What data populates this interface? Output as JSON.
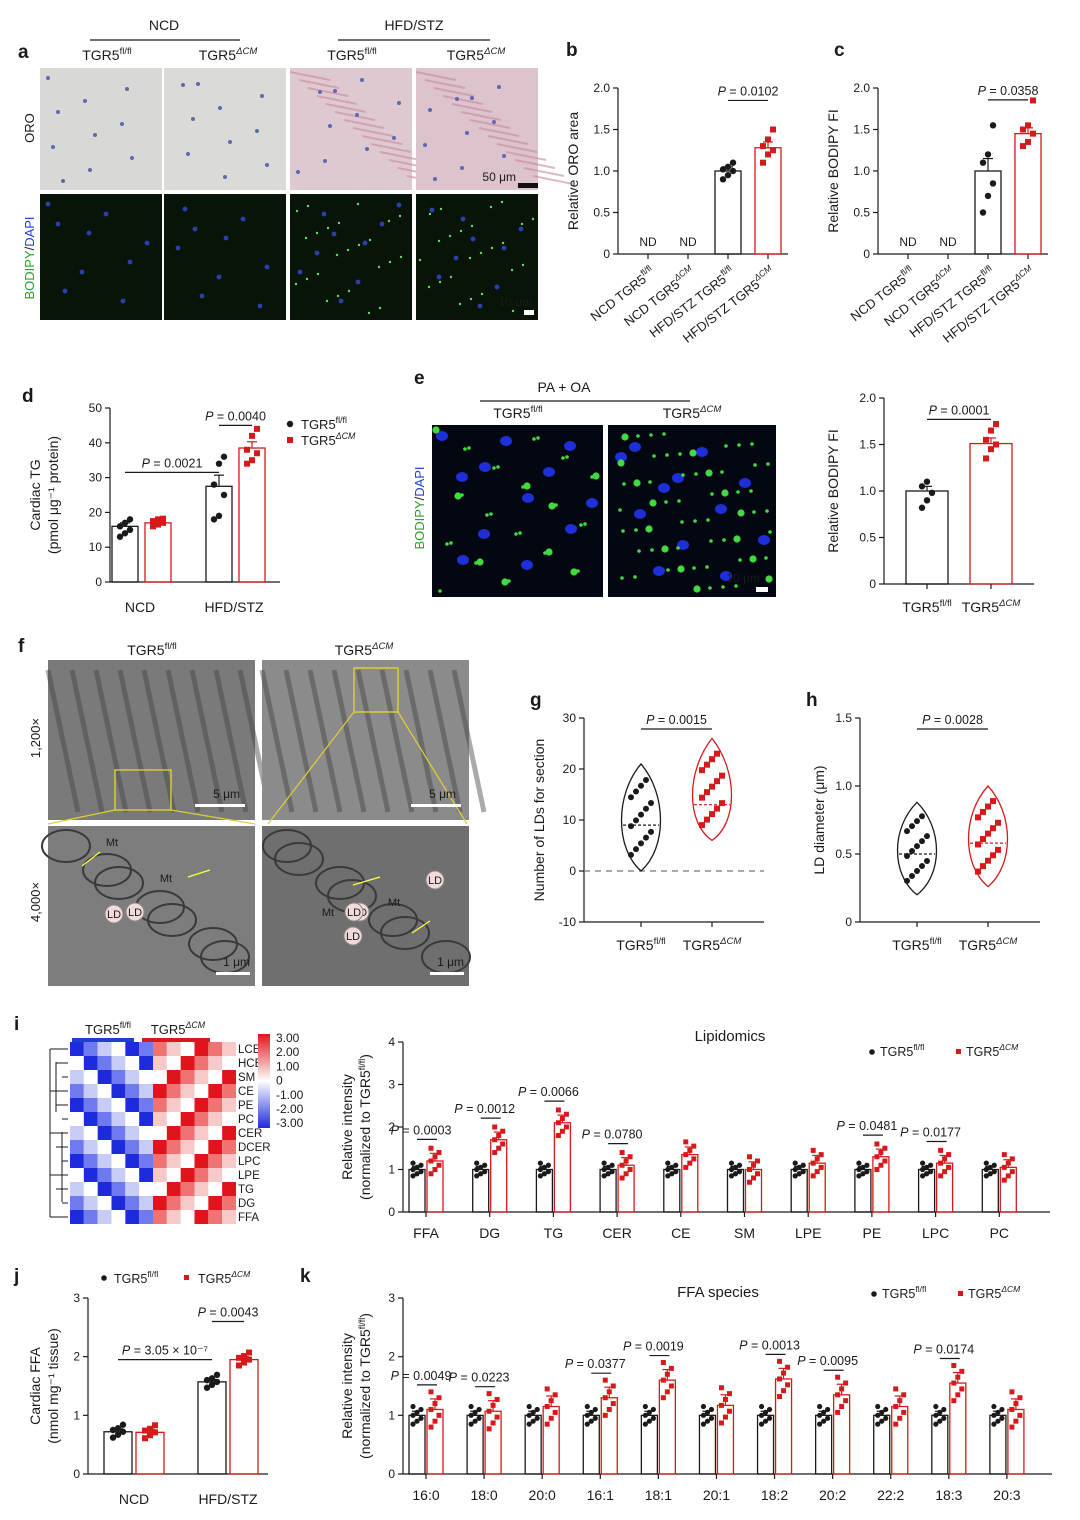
{
  "labels": {
    "panel_letters": [
      "a",
      "b",
      "c",
      "d",
      "e",
      "f",
      "g",
      "h",
      "i",
      "j",
      "k"
    ],
    "ncd": "NCD",
    "hfd_stz": "HFD/STZ",
    "fl": "TGR5fl/fl",
    "cm": "TGR5ΔCM",
    "oro": "ORO",
    "bodipy_dapi": "BODIPY/DAPI",
    "pa_oa": "PA + OA",
    "scale_50um": "50 μm",
    "scale_10um": "10 μm",
    "scale_5um": "5 μm",
    "scale_1um": "1 μm",
    "mag_1200": "1,200×",
    "mag_4000": "4,000×",
    "em_labels": [
      "Mt",
      "Mt",
      "LD",
      "LD",
      "Mt",
      "Mt",
      "LD",
      "LD",
      "LD",
      "LD"
    ],
    "nd": "ND"
  },
  "colors": {
    "fl": "#1a1a1a",
    "cm": "#d7191c",
    "blue_bar": "#1f3fcf",
    "red_bar": "#d7191c"
  },
  "chart_data": [
    {
      "panel": "b",
      "type": "bar",
      "ylabel": "Relative ORO area",
      "ylim": [
        0,
        2.0
      ],
      "ticks": [
        "0",
        "0.5",
        "1.0",
        "1.5",
        "2.0"
      ],
      "categories": [
        "NCD TGR5fl/fl",
        "NCD TGR5ΔCM",
        "HFD/STZ TGR5fl/fl",
        "HFD/STZ TGR5ΔCM"
      ],
      "values": [
        null,
        null,
        1.0,
        1.28
      ],
      "sem": [
        null,
        null,
        0.05,
        0.07
      ],
      "points": [
        [],
        [],
        [
          0.9,
          0.95,
          1.0,
          1.02,
          1.05,
          1.1
        ],
        [
          1.1,
          1.2,
          1.25,
          1.3,
          1.38,
          1.5
        ]
      ],
      "annotation": "P = 0.0102"
    },
    {
      "panel": "c",
      "type": "bar",
      "ylabel": "Relative BODIPY FI",
      "ylim": [
        0,
        2.0
      ],
      "ticks": [
        "0",
        "0.5",
        "1.0",
        "1.5",
        "2.0"
      ],
      "categories": [
        "NCD TGR5fl/fl",
        "NCD TGR5ΔCM",
        "HFD/STZ TGR5fl/fl",
        "HFD/STZ TGR5ΔCM"
      ],
      "values": [
        null,
        null,
        1.0,
        1.45
      ],
      "sem": [
        null,
        null,
        0.15,
        0.07
      ],
      "points": [
        [],
        [],
        [
          0.5,
          0.7,
          0.85,
          1.1,
          1.2,
          1.55
        ],
        [
          1.3,
          1.35,
          1.45,
          1.5,
          1.55,
          1.85
        ]
      ],
      "annotation": "P = 0.0358"
    },
    {
      "panel": "d",
      "type": "bar",
      "ylabel": "Cardiac TG (pmol μg⁻¹ protein)",
      "ylim": [
        0,
        50
      ],
      "ticks": [
        "0",
        "10",
        "20",
        "30",
        "40",
        "50"
      ],
      "categories": [
        "NCD",
        "HFD/STZ"
      ],
      "series": [
        {
          "name": "TGR5fl/fl",
          "values": [
            16,
            27.5
          ],
          "sem": [
            1.0,
            3.2
          ],
          "points": [
            [
              13,
              14,
              15,
              16,
              17,
              18
            ],
            [
              18,
              19,
              25,
              28,
              34,
              36
            ]
          ]
        },
        {
          "name": "TGR5ΔCM",
          "values": [
            17,
            38.5
          ],
          "sem": [
            0.6,
            1.8
          ],
          "points": [
            [
              16,
              16.5,
              17,
              17.5,
              18,
              18.2
            ],
            [
              34,
              35,
              37,
              38,
              42,
              44
            ]
          ]
        }
      ],
      "annotations": [
        "P = 0.0021",
        "P = 0.0040"
      ]
    },
    {
      "panel": "e",
      "type": "bar",
      "ylabel": "Relative BODIPY FI",
      "ylim": [
        0,
        2.0
      ],
      "ticks": [
        "0",
        "0.5",
        "1.0",
        "1.5",
        "2.0"
      ],
      "categories": [
        "TGR5fl/fl",
        "TGR5ΔCM"
      ],
      "values": [
        1.0,
        1.51
      ],
      "sem": [
        0.05,
        0.06
      ],
      "points": [
        [
          0.82,
          0.9,
          0.98,
          1.05,
          1.1
        ],
        [
          1.35,
          1.45,
          1.5,
          1.55,
          1.65,
          1.72
        ]
      ],
      "annotation": "P = 0.0001"
    },
    {
      "panel": "g",
      "type": "violin",
      "ylabel": "Number of LDs for section",
      "ylim": [
        -10,
        30
      ],
      "ticks": [
        "-10",
        "0",
        "10",
        "20",
        "30"
      ],
      "categories": [
        "TGR5fl/fl",
        "TGR5ΔCM"
      ],
      "medians": [
        9,
        13
      ],
      "ranges": [
        [
          0,
          21
        ],
        [
          6,
          26
        ]
      ],
      "annotation": "P = 0.0015"
    },
    {
      "panel": "h",
      "type": "violin",
      "ylabel": "LD diameter (μm)",
      "ylim": [
        0,
        1.5
      ],
      "ticks": [
        "0",
        "0.5",
        "1.0",
        "1.5"
      ],
      "categories": [
        "TGR5fl/fl",
        "TGR5ΔCM"
      ],
      "medians": [
        0.5,
        0.58
      ],
      "ranges": [
        [
          0.2,
          0.88
        ],
        [
          0.26,
          1.0
        ]
      ],
      "annotation": "P = 0.0028"
    },
    {
      "panel": "i",
      "type": "heatmap",
      "legend_ticks": [
        "3.00",
        "2.00",
        "1.00",
        "0",
        "-1.00",
        "-2.00",
        "-3.00"
      ],
      "rows": [
        "LCER",
        "HCER",
        "SM",
        "CE",
        "PE",
        "PC",
        "CER",
        "DCER",
        "LPC",
        "LPE",
        "TG",
        "DG",
        "FFA"
      ],
      "groups": [
        "TGR5fl/fl",
        "TGR5ΔCM"
      ]
    },
    {
      "panel": "i",
      "type": "bar",
      "title": "Lipidomics",
      "ylabel": "Relative intensity (normalized to TGR5fl/fl)",
      "ylim": [
        0,
        4
      ],
      "ticks": [
        "0",
        "1",
        "2",
        "3",
        "4"
      ],
      "categories": [
        "FFA",
        "DG",
        "TG",
        "CER",
        "CE",
        "SM",
        "LPE",
        "PE",
        "LPC",
        "PC"
      ],
      "series": [
        {
          "name": "TGR5fl/fl",
          "values": [
            1,
            1,
            1,
            1,
            1,
            1,
            1,
            1,
            1,
            1
          ]
        },
        {
          "name": "TGR5ΔCM",
          "values": [
            1.2,
            1.7,
            2.1,
            1.1,
            1.35,
            1.0,
            1.15,
            1.3,
            1.15,
            1.05
          ]
        }
      ],
      "annotations": [
        {
          "category": "FFA",
          "text": "P = 0.0003"
        },
        {
          "category": "DG",
          "text": "P = 0.0012"
        },
        {
          "category": "TG",
          "text": "P = 0.0066"
        },
        {
          "category": "CER",
          "text": "P = 0.0780"
        },
        {
          "category": "PE",
          "text": "P = 0.0481"
        },
        {
          "category": "LPC",
          "text": "P = 0.0177"
        }
      ]
    },
    {
      "panel": "j",
      "type": "bar",
      "ylabel": "Cardiac FFA (nmol mg⁻¹ tissue)",
      "ylim": [
        0,
        3
      ],
      "ticks": [
        "0",
        "1",
        "2",
        "3"
      ],
      "categories": [
        "NCD",
        "HFD/STZ"
      ],
      "series": [
        {
          "name": "TGR5fl/fl",
          "values": [
            0.72,
            1.57
          ],
          "sem": [
            0.05,
            0.04
          ]
        },
        {
          "name": "TGR5ΔCM",
          "values": [
            0.71,
            1.95
          ],
          "sem": [
            0.05,
            0.05
          ]
        }
      ],
      "annotations": [
        "P = 3.05 × 10⁻⁷",
        "P = 0.0043"
      ]
    },
    {
      "panel": "k",
      "type": "bar",
      "title": "FFA species",
      "ylabel": "Relative intensity (normalized to TGR5fl/fl)",
      "ylim": [
        0,
        3
      ],
      "ticks": [
        "0",
        "1",
        "2",
        "3"
      ],
      "categories": [
        "16:0",
        "18:0",
        "20:0",
        "16:1",
        "18:1",
        "20:1",
        "18:2",
        "20:2",
        "22:2",
        "18:3",
        "20:3"
      ],
      "series": [
        {
          "name": "TGR5fl/fl",
          "values": [
            1,
            1,
            1,
            1,
            1,
            1,
            1,
            1,
            1,
            1,
            1
          ]
        },
        {
          "name": "TGR5ΔCM",
          "values": [
            1.1,
            1.07,
            1.15,
            1.3,
            1.6,
            1.17,
            1.62,
            1.35,
            1.15,
            1.55,
            1.1
          ]
        }
      ],
      "annotations": [
        {
          "category": "16:0",
          "text": "P = 0.0049"
        },
        {
          "category": "18:0",
          "text": "P = 0.0223"
        },
        {
          "category": "16:1",
          "text": "P = 0.0377"
        },
        {
          "category": "18:1",
          "text": "P = 0.0019"
        },
        {
          "category": "18:2",
          "text": "P = 0.0013"
        },
        {
          "category": "20:2",
          "text": "P = 0.0095"
        },
        {
          "category": "18:3",
          "text": "P = 0.0174"
        }
      ]
    }
  ]
}
